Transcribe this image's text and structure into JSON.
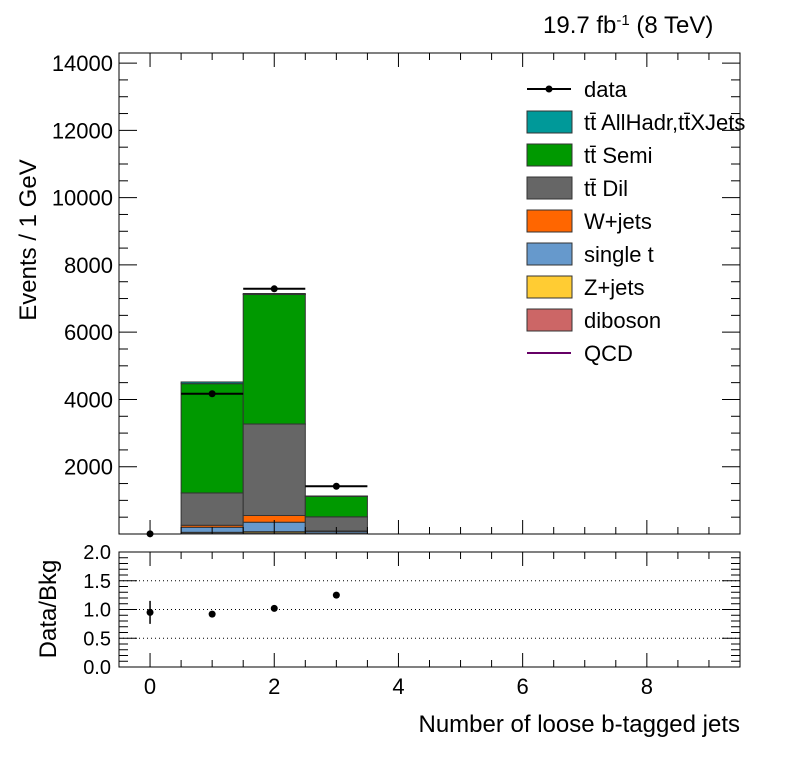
{
  "header": {
    "lumi": "19.7 fb",
    "lumi_exp": "-1",
    "energy": " (8 TeV)"
  },
  "chart_data": {
    "type": "bar",
    "stacked": true,
    "xlabel": "Number of loose b-tagged jets",
    "ylabel": "Events / 1 GeV",
    "ratio_ylabel": "Data/Bkg",
    "xlim": [
      -0.5,
      9.5
    ],
    "ylim": [
      0,
      14300
    ],
    "ratio_ylim": [
      0,
      2
    ],
    "bins": [
      0,
      1,
      2,
      3,
      4,
      5,
      6,
      7,
      8,
      9
    ],
    "x_ticks": [
      "0",
      "2",
      "4",
      "6",
      "8"
    ],
    "y_ticks": [
      "2000",
      "4000",
      "6000",
      "8000",
      "10000",
      "12000",
      "14000"
    ],
    "ratio_ticks": [
      "0.0",
      "0.5",
      "1.0",
      "1.5",
      "2.0"
    ],
    "legend_position": "top-right",
    "series": [
      {
        "name": "diboson",
        "color": "#cc6666",
        "values": [
          0,
          20,
          30,
          10,
          0,
          0,
          0,
          0,
          0,
          0
        ]
      },
      {
        "name": "Z+jets",
        "color": "#ffcc33",
        "values": [
          0,
          30,
          40,
          10,
          0,
          0,
          0,
          0,
          0,
          0
        ]
      },
      {
        "name": "single t",
        "color": "#6699cc",
        "values": [
          0,
          150,
          280,
          50,
          0,
          0,
          0,
          0,
          0,
          0
        ]
      },
      {
        "name": "W+jets",
        "color": "#ff6600",
        "values": [
          0,
          60,
          200,
          20,
          0,
          0,
          0,
          0,
          0,
          0
        ]
      },
      {
        "name": "tt̄ Dil",
        "color": "#666666",
        "values": [
          0,
          960,
          2720,
          420,
          0,
          0,
          0,
          0,
          0,
          0
        ]
      },
      {
        "name": "tt̄ Semi",
        "color": "#009900",
        "values": [
          0,
          3250,
          3850,
          610,
          0,
          0,
          0,
          0,
          0,
          0
        ]
      },
      {
        "name": "tt̄ AllHadr,tt̄XJets",
        "color": "#009999",
        "values": [
          0,
          50,
          30,
          10,
          0,
          0,
          0,
          0,
          0,
          0
        ]
      },
      {
        "name": "QCD",
        "color": "#660066",
        "values": [
          0,
          0,
          0,
          0,
          0,
          0,
          0,
          0,
          0,
          0
        ]
      }
    ],
    "data": {
      "name": "data",
      "x": [
        0,
        1,
        2,
        3
      ],
      "y": [
        5,
        4170,
        7290,
        1420
      ],
      "xerr": [
        0,
        0.5,
        0.5,
        0.5
      ]
    },
    "ratio": {
      "x": [
        0,
        1,
        2,
        3
      ],
      "y": [
        0.95,
        0.92,
        1.02,
        1.25
      ],
      "err": [
        0.2,
        0.02,
        0.015,
        0.03
      ]
    },
    "ratio_grid": [
      0.5,
      1.0,
      1.5
    ]
  }
}
